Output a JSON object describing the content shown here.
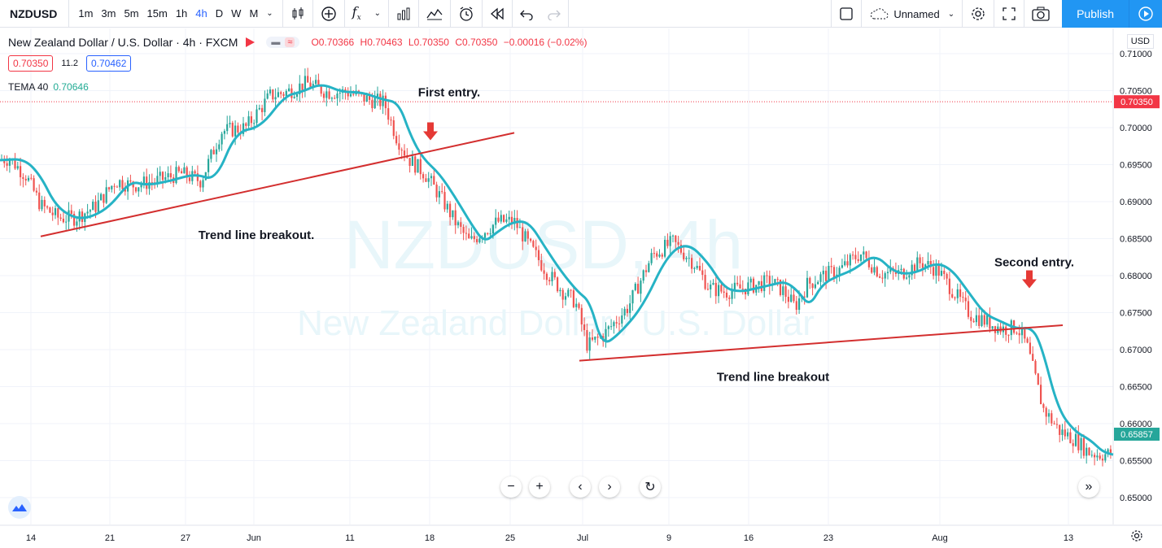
{
  "toolbar": {
    "symbol": "NZDUSD",
    "timeframes": [
      "1m",
      "3m",
      "5m",
      "15m",
      "1h",
      "4h",
      "D",
      "W",
      "M"
    ],
    "active_timeframe": "4h",
    "layout_name": "Unnamed",
    "publish_label": "Publish"
  },
  "legend": {
    "title": "New Zealand Dollar / U.S. Dollar · 4h · FXCM",
    "open": "O0.70366",
    "high": "H0.70463",
    "low": "L0.70350",
    "close": "C0.70350",
    "change": "−0.00016 (−0.02%)",
    "bid": "0.70350",
    "spread": "11.2",
    "ask": "0.70462",
    "indicator_name": "TEMA 40",
    "indicator_value": "0.70646"
  },
  "currency": "USD",
  "watermark": {
    "line1": "NZDUSD, 4h",
    "line2": "New Zealand Dollar / U.S. Dollar"
  },
  "colors": {
    "up": "#26a69a",
    "down": "#ef5350",
    "tema": "#26b3c5",
    "trend": "#d32f2f",
    "last_price": "#f23645",
    "tema_label": "#26a69a"
  },
  "chart_data": {
    "type": "line",
    "ylim": [
      0.6475,
      0.711
    ],
    "ytick_labels": [
      "0.71000",
      "0.70500",
      "0.70000",
      "0.69500",
      "0.69000",
      "0.68500",
      "0.68000",
      "0.67500",
      "0.67000",
      "0.66500",
      "0.66000",
      "0.65500",
      "0.65000"
    ],
    "xtick_labels": [
      "14",
      "21",
      "27",
      "Jun",
      "11",
      "18",
      "25",
      "Jul",
      "9",
      "16",
      "23",
      "Aug",
      "13"
    ],
    "last_price_label": "0.70350",
    "tema_label": "0.65857",
    "series": [
      {
        "name": "TEMA 40",
        "x": [
          0,
          30,
          50,
          68,
          90,
          110,
          135,
          160,
          180,
          210,
          240,
          265,
          290,
          320,
          350,
          370,
          395,
          420,
          445,
          470,
          490,
          505,
          520,
          540,
          560,
          580,
          595,
          610,
          630,
          650,
          670,
          690,
          710,
          725,
          740,
          760,
          790,
          820,
          845,
          870,
          890,
          910,
          930,
          950,
          965,
          980,
          995,
          1010,
          1030,
          1050,
          1075,
          1100,
          1125,
          1150,
          1170,
          1190,
          1210,
          1230,
          1250,
          1268,
          1280,
          1300,
          1320,
          1340,
          1355,
          1368
        ],
        "values": [
          0.6956,
          0.6958,
          0.6935,
          0.6895,
          0.6878,
          0.6878,
          0.6893,
          0.6928,
          0.6922,
          0.6928,
          0.6938,
          0.6928,
          0.6995,
          0.7,
          0.7043,
          0.7048,
          0.706,
          0.7048,
          0.7048,
          0.7038,
          0.7034,
          0.6988,
          0.6958,
          0.6938,
          0.6905,
          0.6868,
          0.6845,
          0.6858,
          0.6873,
          0.6873,
          0.6838,
          0.6805,
          0.6778,
          0.6765,
          0.6705,
          0.672,
          0.6758,
          0.6828,
          0.6845,
          0.6818,
          0.6783,
          0.6778,
          0.6783,
          0.6788,
          0.6792,
          0.678,
          0.6758,
          0.6788,
          0.68,
          0.6808,
          0.683,
          0.6803,
          0.6803,
          0.6818,
          0.6808,
          0.6778,
          0.6748,
          0.6738,
          0.6728,
          0.673,
          0.6705,
          0.662,
          0.659,
          0.6578,
          0.6562,
          0.6558
        ]
      }
    ],
    "trend_lines": [
      {
        "x": [
          50,
          632
        ],
        "values": [
          0.6853,
          0.6993
        ]
      },
      {
        "x": [
          712,
          1306
        ],
        "values": [
          0.6685,
          0.6733
        ]
      }
    ],
    "annotations": [
      {
        "text": "First entry.",
        "x": 552,
        "y": 0.7048
      },
      {
        "text": "Trend line breakout.",
        "x": 315,
        "y": 0.6855
      },
      {
        "text": "Second entry.",
        "x": 1271,
        "y": 0.6818
      },
      {
        "text": "Trend line breakout",
        "x": 950,
        "y": 0.6663
      }
    ],
    "arrows": [
      {
        "x": 529,
        "y": 0.6983
      },
      {
        "x": 1265,
        "y": 0.6783
      }
    ]
  }
}
